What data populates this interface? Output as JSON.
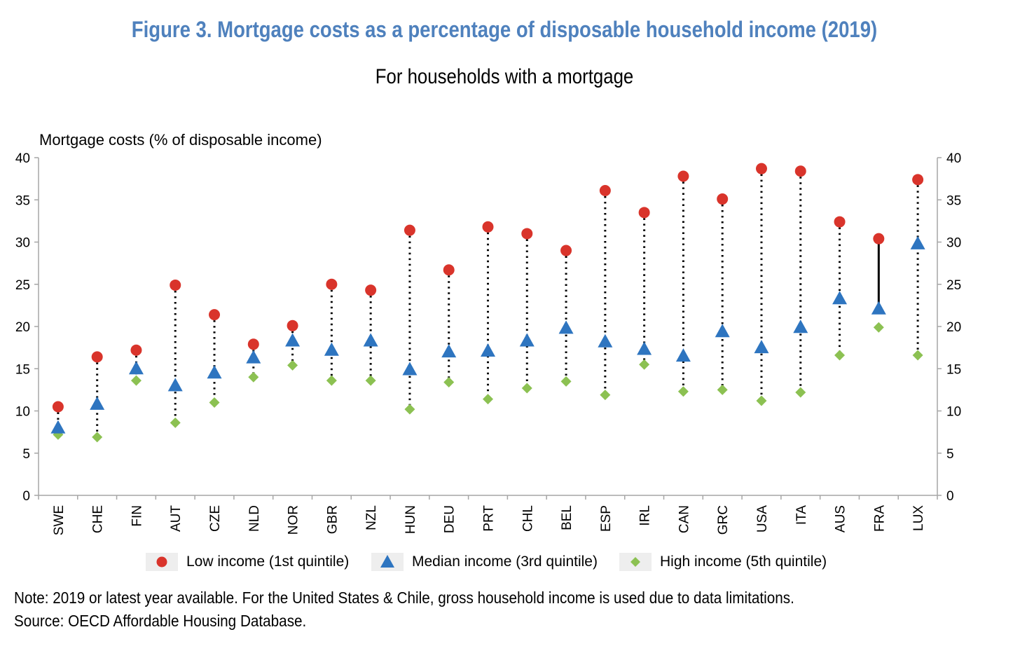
{
  "title": "Figure 3. Mortgage costs as a percentage of disposable household income (2019)",
  "subtitle": "For households with a mortgage",
  "note": "Note: 2019 or latest year available. For the United States & Chile, gross household income is used due to data limitations.",
  "source": "Source: OECD Affordable Housing Database.",
  "colors": {
    "low": "#d9342b",
    "median": "#2e75c0",
    "high": "#8cc152",
    "title": "#4f81bd",
    "axis": "#a6a6a6"
  },
  "chart_data": {
    "type": "scatter",
    "ylabel": "Mortgage costs (% of disposable income)",
    "ylim": [
      0,
      40
    ],
    "yticks": [
      "0",
      "5",
      "10",
      "15",
      "20",
      "25",
      "30",
      "35",
      "40"
    ],
    "grid": false,
    "legend_position": "bottom",
    "categories": [
      "SWE",
      "CHE",
      "FIN",
      "AUT",
      "CZE",
      "NLD",
      "NOR",
      "GBR",
      "NZL",
      "HUN",
      "DEU",
      "PRT",
      "CHL",
      "BEL",
      "ESP",
      "IRL",
      "CAN",
      "GRC",
      "USA",
      "ITA",
      "AUS",
      "FRA",
      "LUX"
    ],
    "series": [
      {
        "name": "Low income (1st quintile)",
        "marker": "circle",
        "values": [
          10.5,
          16.4,
          17.2,
          24.9,
          21.4,
          17.9,
          20.1,
          25.0,
          24.3,
          31.4,
          26.7,
          31.8,
          31.0,
          29.0,
          36.1,
          33.5,
          37.8,
          35.1,
          38.7,
          38.4,
          32.4,
          30.4,
          37.4
        ]
      },
      {
        "name": "Median income (3rd quintile)",
        "marker": "triangle",
        "values": [
          8.0,
          10.8,
          15.0,
          13.0,
          14.5,
          16.3,
          18.3,
          17.2,
          18.3,
          14.9,
          17.0,
          17.1,
          18.3,
          19.8,
          18.2,
          17.3,
          16.5,
          19.4,
          17.5,
          19.9,
          23.3,
          22.1,
          29.8
        ]
      },
      {
        "name": "High income (5th quintile)",
        "marker": "diamond",
        "values": [
          7.2,
          6.9,
          13.6,
          8.6,
          11.0,
          14.0,
          15.4,
          13.6,
          13.6,
          10.2,
          13.4,
          11.4,
          12.7,
          13.5,
          11.9,
          15.5,
          12.3,
          12.5,
          11.2,
          12.2,
          16.6,
          19.9,
          16.6
        ]
      }
    ],
    "solid_range_categories": [
      "FRA"
    ]
  }
}
